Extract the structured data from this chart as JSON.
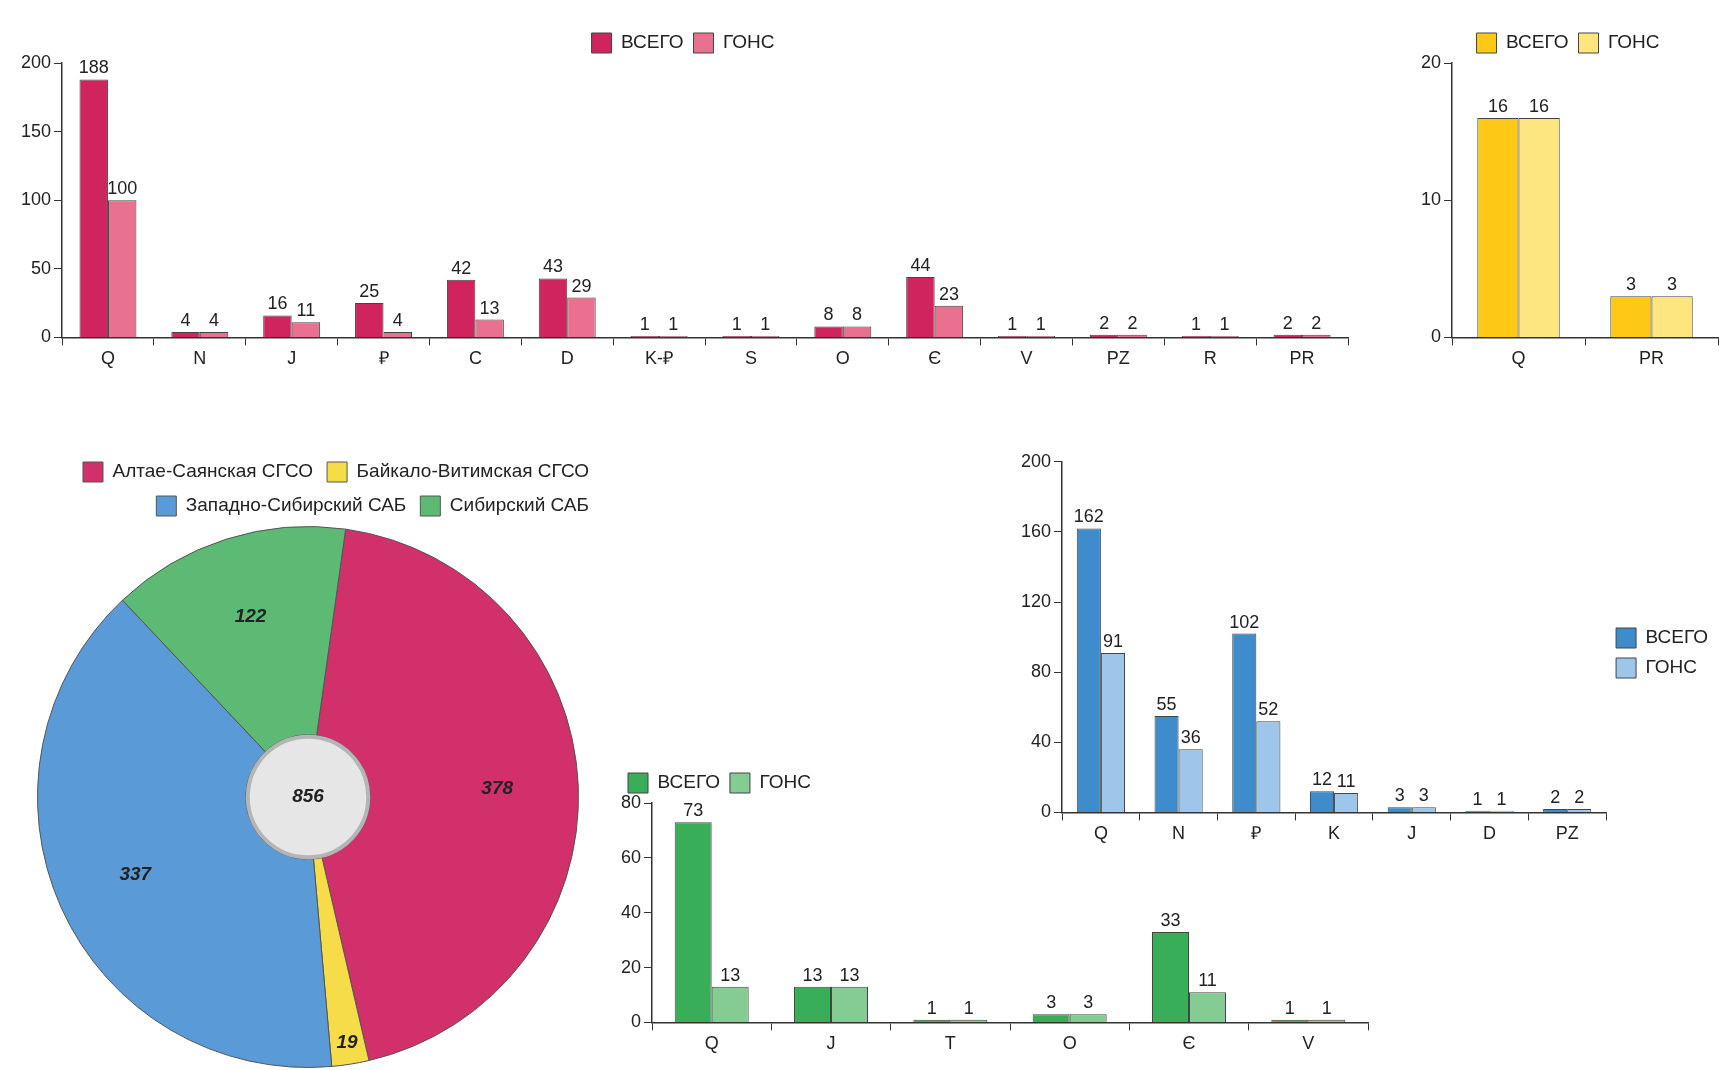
{
  "chart_data": [
    {
      "type": "bar",
      "categories": [
        "Q",
        "N",
        "J",
        "₽",
        "C",
        "D",
        "K-₽",
        "S",
        "O",
        "Є",
        "V",
        "PZ",
        "R",
        "PR"
      ],
      "series": [
        {
          "name": "ВСЕГО",
          "color": "#d0245f",
          "values": [
            188,
            4,
            16,
            25,
            42,
            43,
            1,
            1,
            8,
            44,
            1,
            2,
            1,
            2
          ]
        },
        {
          "name": "ГОНС",
          "color": "#e9708f",
          "values": [
            100,
            4,
            11,
            4,
            13,
            29,
            1,
            1,
            8,
            23,
            1,
            2,
            1,
            2
          ]
        }
      ],
      "ylim": [
        0,
        200
      ],
      "yticks": [
        0,
        50,
        100,
        150,
        200
      ],
      "grid": false,
      "legend": "top",
      "data_labels": true
    },
    {
      "type": "bar",
      "categories": [
        "Q",
        "PR"
      ],
      "series": [
        {
          "name": "ВСЕГО",
          "color": "#fdc916",
          "values": [
            16,
            3
          ]
        },
        {
          "name": "ГОНС",
          "color": "#fde680",
          "values": [
            16,
            3
          ]
        }
      ],
      "ylim": [
        0,
        20
      ],
      "yticks": [
        0,
        10,
        20
      ],
      "grid": false,
      "legend": "top",
      "data_labels": true
    },
    {
      "type": "donut",
      "categories": [
        "Алтае-Саянская СГСО",
        "Байкало-Витимская СГСО",
        "Западно-Сибирский САБ",
        "Сибирский САБ"
      ],
      "values": [
        378,
        19,
        337,
        122
      ],
      "colors": [
        "#d2306a",
        "#f7dc4a",
        "#5a9ad6",
        "#5cba74"
      ],
      "legend": "top",
      "data_labels": true,
      "annotations": [
        "856"
      ]
    },
    {
      "type": "bar",
      "categories": [
        "Q",
        "N",
        "₽",
        "K",
        "J",
        "D",
        "PZ"
      ],
      "series": [
        {
          "name": "ВСЕГО",
          "color": "#3f8ccc",
          "values": [
            162,
            55,
            102,
            12,
            3,
            1,
            2
          ]
        },
        {
          "name": "ГОНС",
          "color": "#9ec6ea",
          "values": [
            91,
            36,
            52,
            11,
            3,
            1,
            2
          ]
        }
      ],
      "ylim": [
        0,
        200
      ],
      "yticks": [
        0,
        40,
        80,
        120,
        160,
        200
      ],
      "grid": false,
      "legend": "right",
      "data_labels": true
    },
    {
      "type": "bar",
      "categories": [
        "Q",
        "J",
        "T",
        "O",
        "Є",
        "V"
      ],
      "series": [
        {
          "name": "ВСЕГО",
          "color": "#39ae58",
          "values": [
            73,
            13,
            1,
            3,
            33,
            1
          ]
        },
        {
          "name": "ГОНС",
          "color": "#84cc94",
          "values": [
            13,
            13,
            1,
            3,
            11,
            1
          ]
        }
      ],
      "ylim": [
        0,
        80
      ],
      "yticks": [
        0,
        20,
        40,
        60,
        80
      ],
      "grid": false,
      "legend": "top left",
      "data_labels": true
    }
  ]
}
